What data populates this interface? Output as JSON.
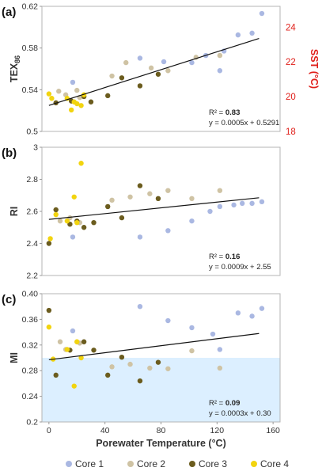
{
  "legend": [
    {
      "name": "Core 1",
      "color": "#aab8e2"
    },
    {
      "name": "Core 2",
      "color": "#cfc3a4"
    },
    {
      "name": "Core 3",
      "color": "#6b5c1e"
    },
    {
      "name": "Core 4",
      "color": "#f2d40f"
    }
  ],
  "chart_data": [
    {
      "type": "scatter",
      "panel_label": "(a)",
      "xlim": [
        -5,
        165
      ],
      "ylim": [
        0.5,
        0.64
      ],
      "yticks": [
        "0.5",
        "0.54",
        "0.58",
        "0.62"
      ],
      "y2label": "SST (°C)",
      "y2ticks": [
        "18",
        "20",
        "22",
        "24"
      ],
      "y2lim": [
        18,
        25.2
      ],
      "y2color": "#e0201b",
      "shaded_below": null,
      "annotation": {
        "r2_label": "R² = ",
        "r2_value": "0.83",
        "equation": "y = 0.0005x + 0.5291"
      },
      "trendline": {
        "x": [
          0,
          150
        ],
        "y": [
          0.5291,
          0.6041
        ]
      },
      "series": [
        {
          "name": "Core 1",
          "color": "#aab8e2",
          "points": [
            [
              17,
              0.555
            ],
            [
              65,
              0.582
            ],
            [
              82,
              0.578
            ],
            [
              102,
              0.577
            ],
            [
              112,
              0.585
            ],
            [
              122,
              0.568
            ],
            [
              125,
              0.59
            ],
            [
              135,
              0.608
            ],
            [
              145,
              0.61
            ],
            [
              152,
              0.632
            ]
          ]
        },
        {
          "name": "Core 2",
          "color": "#cfc3a4",
          "points": [
            [
              7,
              0.545
            ],
            [
              12,
              0.541
            ],
            [
              20,
              0.546
            ],
            [
              22,
              0.538
            ],
            [
              45,
              0.562
            ],
            [
              55,
              0.577
            ],
            [
              73,
              0.571
            ],
            [
              85,
              0.568
            ],
            [
              105,
              0.583
            ],
            [
              122,
              0.585
            ]
          ]
        },
        {
          "name": "Core 3",
          "color": "#6b5c1e",
          "points": [
            [
              5,
              0.532
            ],
            [
              16,
              0.534
            ],
            [
              25,
              0.539
            ],
            [
              30,
              0.533
            ],
            [
              42,
              0.54
            ],
            [
              52,
              0.56
            ],
            [
              65,
              0.551
            ],
            [
              78,
              0.564
            ]
          ]
        },
        {
          "name": "Core 4",
          "color": "#f2d40f",
          "points": [
            [
              0,
              0.542
            ],
            [
              2,
              0.537
            ],
            [
              13,
              0.537
            ],
            [
              16,
              0.524
            ],
            [
              18,
              0.533
            ],
            [
              20,
              0.531
            ],
            [
              23,
              0.529
            ],
            [
              25,
              0.541
            ]
          ]
        }
      ]
    },
    {
      "type": "scatter",
      "panel_label": "(b)",
      "ylabel": "RI",
      "xlim": [
        -5,
        165
      ],
      "ylim": [
        2.2,
        3.0
      ],
      "yticks": [
        "2.2",
        "2.4",
        "2.6",
        "2.8",
        "3"
      ],
      "shaded_below": null,
      "annotation": {
        "r2_label": "R² = ",
        "r2_value": "0.16",
        "equation": "y = 0.0009x + 2.55"
      },
      "trendline": {
        "x": [
          0,
          150
        ],
        "y": [
          2.55,
          2.685
        ]
      },
      "series": [
        {
          "name": "Core 1",
          "color": "#aab8e2",
          "points": [
            [
              17,
              2.44
            ],
            [
              65,
              2.44
            ],
            [
              85,
              2.48
            ],
            [
              102,
              2.54
            ],
            [
              115,
              2.6
            ],
            [
              122,
              2.63
            ],
            [
              132,
              2.64
            ],
            [
              138,
              2.65
            ],
            [
              145,
              2.65
            ],
            [
              152,
              2.66
            ]
          ]
        },
        {
          "name": "Core 2",
          "color": "#cfc3a4",
          "points": [
            [
              8,
              2.54
            ],
            [
              15,
              2.56
            ],
            [
              22,
              2.53
            ],
            [
              45,
              2.67
            ],
            [
              58,
              2.69
            ],
            [
              72,
              2.71
            ],
            [
              85,
              2.73
            ],
            [
              102,
              2.68
            ],
            [
              122,
              2.73
            ]
          ]
        },
        {
          "name": "Core 3",
          "color": "#6b5c1e",
          "points": [
            [
              0,
              2.4
            ],
            [
              5,
              2.61
            ],
            [
              15,
              2.52
            ],
            [
              20,
              2.54
            ],
            [
              25,
              2.5
            ],
            [
              32,
              2.53
            ],
            [
              42,
              2.63
            ],
            [
              52,
              2.56
            ],
            [
              65,
              2.76
            ],
            [
              78,
              2.68
            ]
          ]
        },
        {
          "name": "Core 4",
          "color": "#f2d40f",
          "points": [
            [
              1,
              2.43
            ],
            [
              5,
              2.58
            ],
            [
              13,
              2.54
            ],
            [
              18,
              2.69
            ],
            [
              20,
              2.53
            ],
            [
              23,
              2.9
            ]
          ]
        }
      ]
    },
    {
      "type": "scatter",
      "panel_label": "(c)",
      "ylabel": "MI",
      "xlabel": "Porewater Temperature (°C)",
      "xlim": [
        -5,
        165
      ],
      "ylim": [
        0.2,
        0.4
      ],
      "yticks": [
        "0.2",
        "0.24",
        "0.28",
        "0.32",
        "0.36",
        "0.40"
      ],
      "xticks": [
        "0",
        "40",
        "80",
        "120",
        "160"
      ],
      "xtick_values": [
        0,
        40,
        80,
        120,
        160
      ],
      "shaded_below": 0.3,
      "shade_color": "#dcefff",
      "annotation": {
        "r2_label": "R² = ",
        "r2_value": "0.09",
        "equation": "y = 0.0003x + 0.30"
      },
      "trendline": {
        "x": [
          0,
          150
        ],
        "y": [
          0.297,
          0.338
        ]
      },
      "series": [
        {
          "name": "Core 1",
          "color": "#aab8e2",
          "points": [
            [
              17,
              0.342
            ],
            [
              65,
              0.38
            ],
            [
              85,
              0.358
            ],
            [
              102,
              0.347
            ],
            [
              117,
              0.337
            ],
            [
              122,
              0.313
            ],
            [
              135,
              0.37
            ],
            [
              145,
              0.365
            ],
            [
              152,
              0.377
            ]
          ]
        },
        {
          "name": "Core 2",
          "color": "#cfc3a4",
          "points": [
            [
              8,
              0.325
            ],
            [
              12,
              0.313
            ],
            [
              20,
              0.325
            ],
            [
              22,
              0.323
            ],
            [
              45,
              0.286
            ],
            [
              58,
              0.29
            ],
            [
              72,
              0.284
            ],
            [
              85,
              0.283
            ],
            [
              102,
              0.311
            ],
            [
              122,
              0.284
            ]
          ]
        },
        {
          "name": "Core 3",
          "color": "#6b5c1e",
          "points": [
            [
              0,
              0.374
            ],
            [
              5,
              0.273
            ],
            [
              15,
              0.312
            ],
            [
              25,
              0.325
            ],
            [
              32,
              0.312
            ],
            [
              42,
              0.273
            ],
            [
              52,
              0.301
            ],
            [
              65,
              0.264
            ],
            [
              78,
              0.293
            ]
          ]
        },
        {
          "name": "Core 4",
          "color": "#f2d40f",
          "points": [
            [
              0,
              0.348
            ],
            [
              3,
              0.298
            ],
            [
              13,
              0.313
            ],
            [
              18,
              0.256
            ],
            [
              20,
              0.325
            ],
            [
              23,
              0.3
            ]
          ]
        }
      ]
    }
  ]
}
